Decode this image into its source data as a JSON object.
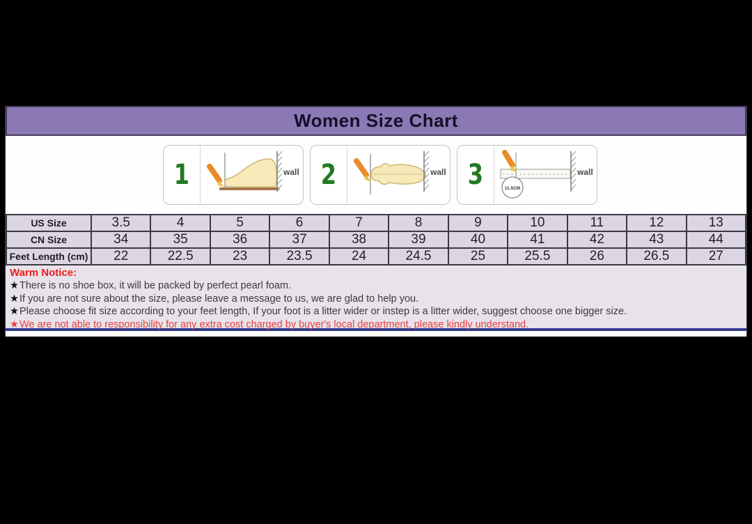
{
  "title": "Women Size Chart",
  "panels": [
    {
      "number": "1",
      "wall_label": "wall"
    },
    {
      "number": "2",
      "wall_label": "wall"
    },
    {
      "number": "3",
      "wall_label": "wall",
      "ruler_note": "11.5CM"
    }
  ],
  "table": {
    "rows": [
      {
        "label": "US Size",
        "values": [
          "3.5",
          "4",
          "5",
          "6",
          "7",
          "8",
          "9",
          "10",
          "11",
          "12",
          "13"
        ]
      },
      {
        "label": "CN Size",
        "values": [
          "34",
          "35",
          "36",
          "37",
          "38",
          "39",
          "40",
          "41",
          "42",
          "43",
          "44"
        ]
      },
      {
        "label": "Feet Length (cm)",
        "values": [
          "22",
          "22.5",
          "23",
          "23.5",
          "24",
          "24.5",
          "25",
          "25.5",
          "26",
          "26.5",
          "27"
        ]
      }
    ]
  },
  "notice": {
    "title": "Warm Notice:",
    "star": "★",
    "items": [
      {
        "text": "There is no shoe box, it will be packed by perfect pearl foam.",
        "highlight": false
      },
      {
        "text": "If you are not sure about the size, please leave a message to us, we are glad to help you.",
        "highlight": false
      },
      {
        "text": "Please choose fit size according to your feet length, If your foot is a litter wider or instep is a litter wider, suggest choose one bigger size.",
        "highlight": false
      },
      {
        "text": "We are not able to responsibility for any extra cost charged by buyer's local department, please kindly understand.",
        "highlight": true
      }
    ]
  },
  "colors": {
    "header_purple": "#8a79b4",
    "table_bg": "#dcd6e4",
    "notice_bg": "#e8e3ea",
    "warn_red": "#e81e1e",
    "bottom_border_blue": "#333a8c",
    "step_number_green": "#217a21",
    "pencil_orange": "#e98b28",
    "foot_fill": "#f8e9b8"
  }
}
